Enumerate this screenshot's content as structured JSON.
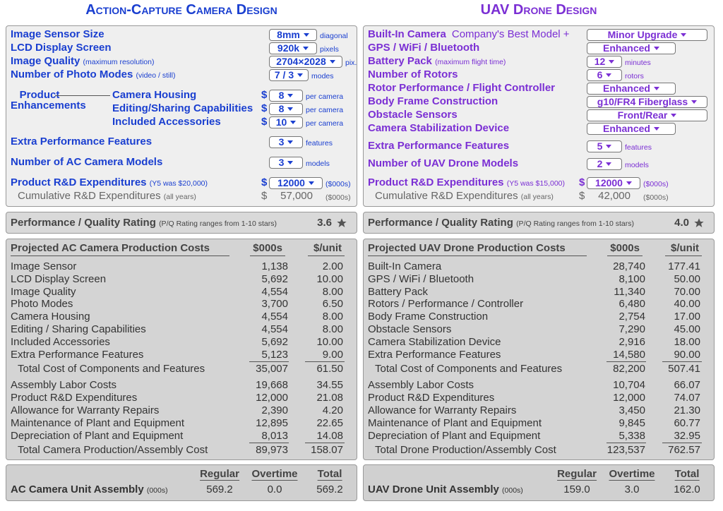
{
  "columns": [
    {
      "title": "Action-Capture Camera Design",
      "rows": [
        {
          "label": "Image Sensor Size",
          "value": "8mm",
          "unit": "diagonal"
        },
        {
          "label": "LCD Display Screen",
          "value": "920k",
          "unit": "pixels"
        },
        {
          "label": "Image Quality",
          "note": "(maximum resolution)",
          "value": "2704×2028",
          "unit": "pix."
        },
        {
          "label": "Number of Photo Modes",
          "note": "(video / still)",
          "value": "7 / 3",
          "unit": "modes"
        },
        {
          "label": "Extra Performance Features",
          "value": 3,
          "unit": "features"
        },
        {
          "label": "Number of AC Camera Models",
          "value": 3,
          "unit": "models"
        }
      ],
      "enhancements": {
        "label": "Product Enhancements",
        "rows": [
          {
            "label": "Camera Housing",
            "prefix": "$",
            "value": 8,
            "unit": "per camera"
          },
          {
            "label": "Editing/Sharing Capabilities",
            "prefix": "$",
            "value": 8,
            "unit": "per camera"
          },
          {
            "label": "Included Accessories",
            "prefix": "$",
            "value": 10,
            "unit": "per camera"
          }
        ]
      },
      "rd": {
        "label": "Product R&D Expenditures",
        "note": "(Y5 was $20,000)",
        "prefix": "$",
        "value": 12000,
        "unit": "($000s)"
      },
      "cumulative": {
        "label": "Cumulative R&D Expenditures",
        "note": "(all years)",
        "prefix": "$",
        "value": "57,000",
        "unit": "($000s)"
      },
      "rating": {
        "label": "Performance / Quality Rating",
        "note": "(P/Q Rating ranges from 1-10 stars)",
        "value": 3.6
      },
      "costs": {
        "headers": [
          "Projected AC Camera Production Costs",
          "$000s",
          "$/unit"
        ],
        "groups": [
          {
            "rows": [
              [
                "Image Sensor",
                "1,138",
                "2.00"
              ],
              [
                "LCD Display Screen",
                "5,692",
                "10.00"
              ],
              [
                "Image Quality",
                "4,554",
                "8.00"
              ],
              [
                "Photo Modes",
                "3,700",
                "6.50"
              ],
              [
                "Camera Housing",
                "4,554",
                "8.00"
              ],
              [
                "Editing / Sharing Capabilities",
                "4,554",
                "8.00"
              ],
              [
                "Included Accessories",
                "5,692",
                "10.00"
              ],
              [
                "Extra Performance Features",
                "5,123",
                "9.00"
              ]
            ],
            "total": [
              "Total Cost of Components and Features",
              "35,007",
              "61.50"
            ]
          },
          {
            "rows": [
              [
                "Assembly Labor Costs",
                "19,668",
                "34.55"
              ],
              [
                "Product R&D Expenditures",
                "12,000",
                "21.08"
              ],
              [
                "Allowance for Warranty Repairs",
                "2,390",
                "4.20"
              ],
              [
                "Maintenance of Plant and Equipment",
                "12,895",
                "22.65"
              ],
              [
                "Depreciation of Plant and Equipment",
                "8,013",
                "14.08"
              ]
            ],
            "total": [
              "Total Camera Production/Assembly Cost",
              "89,973",
              "158.07"
            ]
          }
        ]
      },
      "assembly": {
        "headers": [
          "Regular",
          "Overtime",
          "Total"
        ],
        "label": "AC Camera Unit Assembly",
        "note": "(000s)",
        "values": [
          "569.2",
          "0.0",
          "569.2"
        ]
      }
    },
    {
      "title": "UAV Drone Design",
      "rows": [
        {
          "label": "Built-In Camera",
          "remark": "Company's Best Model +",
          "value": "Minor Upgrade"
        },
        {
          "label": "GPS / WiFi / Bluetooth",
          "value": "Enhanced"
        },
        {
          "label": "Battery Pack",
          "note": "(maximum flight time)",
          "value": 12,
          "unit": "minutes"
        },
        {
          "label": "Number of Rotors",
          "value": 6,
          "unit": "rotors"
        },
        {
          "label": "Rotor Performance / Flight Controller",
          "value": "Enhanced"
        },
        {
          "label": "Body Frame Construction",
          "value": "g10/FR4 Fiberglass"
        },
        {
          "label": "Obstacle Sensors",
          "value": "Front/Rear"
        },
        {
          "label": "Camera Stabilization Device",
          "value": "Enhanced"
        },
        {
          "label": "Extra Performance Features",
          "value": 5,
          "unit": "features"
        },
        {
          "label": "Number of UAV Drone Models",
          "value": 2,
          "unit": "models"
        }
      ],
      "rd": {
        "label": "Product R&D Expenditures",
        "note": "(Y5 was $15,000)",
        "prefix": "$",
        "value": 12000,
        "unit": "($000s)"
      },
      "cumulative": {
        "label": "Cumulative R&D Expenditures",
        "note": "(all years)",
        "prefix": "$",
        "value": "42,000",
        "unit": "($000s)"
      },
      "rating": {
        "label": "Performance / Quality Rating",
        "note": "(P/Q Rating ranges from 1-10 stars)",
        "value": 4.0
      },
      "costs": {
        "headers": [
          "Projected UAV Drone Production Costs",
          "$000s",
          "$/unit"
        ],
        "groups": [
          {
            "rows": [
              [
                "Built-In Camera",
                "28,740",
                "177.41"
              ],
              [
                "GPS / WiFi / Bluetooth",
                "8,100",
                "50.00"
              ],
              [
                "Battery Pack",
                "11,340",
                "70.00"
              ],
              [
                "Rotors / Performance / Controller",
                "6,480",
                "40.00"
              ],
              [
                "Body Frame Construction",
                "2,754",
                "17.00"
              ],
              [
                "Obstacle Sensors",
                "7,290",
                "45.00"
              ],
              [
                "Camera Stabilization Device",
                "2,916",
                "18.00"
              ],
              [
                "Extra Performance Features",
                "14,580",
                "90.00"
              ]
            ],
            "total": [
              "Total Cost of Components and Features",
              "82,200",
              "507.41"
            ]
          },
          {
            "rows": [
              [
                "Assembly Labor Costs",
                "10,704",
                "66.07"
              ],
              [
                "Product R&D Expenditures",
                "12,000",
                "74.07"
              ],
              [
                "Allowance for Warranty Repairs",
                "3,450",
                "21.30"
              ],
              [
                "Maintenance of Plant and Equipment",
                "9,845",
                "60.77"
              ],
              [
                "Depreciation of Plant and Equipment",
                "5,338",
                "32.95"
              ]
            ],
            "total": [
              "Total Drone Production/Assembly Cost",
              "123,537",
              "762.57"
            ]
          }
        ]
      },
      "assembly": {
        "headers": [
          "Regular",
          "Overtime",
          "Total"
        ],
        "label": "UAV Drone Unit Assembly",
        "note": "(000s)",
        "values": [
          "159.0",
          "3.0",
          "162.0"
        ]
      }
    }
  ]
}
